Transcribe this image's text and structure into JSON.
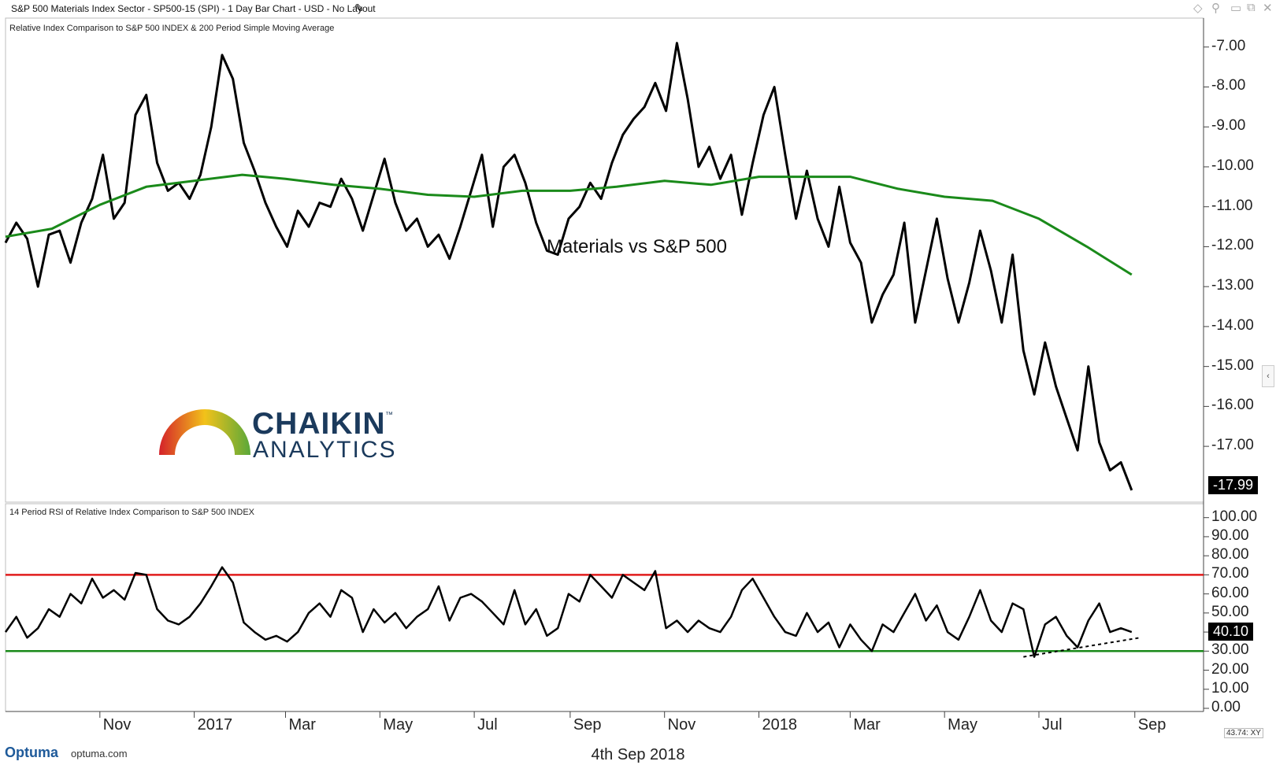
{
  "window": {
    "title": "S&P 500 Materials Index Sector - SP500-15 (SPI) - 1 Day Bar Chart - USD - No Layout",
    "icons": [
      "pencil-icon",
      "diamond-icon",
      "pin-icon",
      "minimize-icon",
      "restore-icon",
      "close-icon"
    ]
  },
  "colors": {
    "price": "#000000",
    "sma": "#1a8a1a",
    "overbought": "#e11b1b",
    "oversold": "#1a8a1a",
    "grid": "#c8c8c8"
  },
  "logo": {
    "line1": "CHAIKIN",
    "tm": "™",
    "line2": "ANALYTICS"
  },
  "footer": {
    "optuma_logo": "Optuma",
    "optuma_url": "optuma.com",
    "date": "4th Sep 2018",
    "coord_readout": "43.74: XY"
  },
  "chart_data": [
    {
      "type": "line",
      "title": "Relative Index Comparison to S&P 500 INDEX & 200 Period Simple Moving Average",
      "annotation": "Materials vs S&P 500",
      "ylim": [
        -18.2,
        -6.65
      ],
      "yticks": [
        "-7.00",
        "-8.00",
        "-9.00",
        "-10.00",
        "-11.00",
        "-12.00",
        "-13.00",
        "-14.00",
        "-15.00",
        "-16.00",
        "-17.00"
      ],
      "last_value_label": "-17.99",
      "series": [
        {
          "name": "",
          "style": "price",
          "x": [
            "2016-09-01",
            "2016-09-08",
            "2016-09-15",
            "2016-09-22",
            "2016-09-29",
            "2016-10-06",
            "2016-10-13",
            "2016-10-20",
            "2016-10-27",
            "2016-11-03",
            "2016-11-10",
            "2016-11-17",
            "2016-11-24",
            "2016-12-01",
            "2016-12-08",
            "2016-12-15",
            "2016-12-22",
            "2016-12-29",
            "2017-01-05",
            "2017-01-12",
            "2017-01-19",
            "2017-01-26",
            "2017-02-02",
            "2017-02-09",
            "2017-02-16",
            "2017-02-23",
            "2017-03-02",
            "2017-03-09",
            "2017-03-16",
            "2017-03-23",
            "2017-03-30",
            "2017-04-06",
            "2017-04-13",
            "2017-04-20",
            "2017-04-27",
            "2017-05-04",
            "2017-05-11",
            "2017-05-18",
            "2017-05-25",
            "2017-06-01",
            "2017-06-08",
            "2017-06-15",
            "2017-06-22",
            "2017-06-29",
            "2017-07-06",
            "2017-07-13",
            "2017-07-20",
            "2017-07-27",
            "2017-08-03",
            "2017-08-10",
            "2017-08-17",
            "2017-08-24",
            "2017-08-31",
            "2017-09-07",
            "2017-09-14",
            "2017-09-21",
            "2017-09-28",
            "2017-10-05",
            "2017-10-12",
            "2017-10-19",
            "2017-10-26",
            "2017-11-02",
            "2017-11-09",
            "2017-11-16",
            "2017-11-23",
            "2017-11-30",
            "2017-12-07",
            "2017-12-14",
            "2017-12-21",
            "2017-12-28",
            "2018-01-04",
            "2018-01-11",
            "2018-01-18",
            "2018-01-25",
            "2018-02-01",
            "2018-02-08",
            "2018-02-15",
            "2018-02-22",
            "2018-03-01",
            "2018-03-08",
            "2018-03-15",
            "2018-03-22",
            "2018-03-29",
            "2018-04-05",
            "2018-04-12",
            "2018-04-19",
            "2018-04-26",
            "2018-05-03",
            "2018-05-10",
            "2018-05-17",
            "2018-05-24",
            "2018-05-31",
            "2018-06-07",
            "2018-06-14",
            "2018-06-21",
            "2018-06-28",
            "2018-07-05",
            "2018-07-12",
            "2018-07-19",
            "2018-07-26",
            "2018-08-02",
            "2018-08-09",
            "2018-08-16",
            "2018-08-23",
            "2018-08-30"
          ],
          "values": [
            -11.9,
            -11.4,
            -11.8,
            -13.0,
            -11.7,
            -11.6,
            -12.4,
            -11.4,
            -10.8,
            -9.7,
            -11.3,
            -10.9,
            -8.7,
            -8.2,
            -9.9,
            -10.6,
            -10.4,
            -10.8,
            -10.2,
            -9.0,
            -7.2,
            -7.8,
            -9.4,
            -10.1,
            -10.9,
            -11.5,
            -12.0,
            -11.1,
            -11.5,
            -10.9,
            -11.0,
            -10.3,
            -10.8,
            -11.6,
            -10.7,
            -9.8,
            -10.9,
            -11.6,
            -11.3,
            -12.0,
            -11.7,
            -12.3,
            -11.5,
            -10.6,
            -9.7,
            -11.5,
            -10.0,
            -9.7,
            -10.4,
            -11.4,
            -12.1,
            -12.2,
            -11.3,
            -11.0,
            -10.4,
            -10.8,
            -9.9,
            -9.2,
            -8.8,
            -8.5,
            -7.9,
            -8.6,
            -6.9,
            -8.3,
            -10.0,
            -9.5,
            -10.3,
            -9.7,
            -11.2,
            -9.9,
            -8.7,
            -8.0,
            -9.7,
            -11.3,
            -10.1,
            -11.3,
            -12.0,
            -10.5,
            -11.9,
            -12.4,
            -13.9,
            -13.2,
            -12.7,
            -11.4,
            -13.9,
            -12.6,
            -11.3,
            -12.8,
            -13.9,
            -12.9,
            -11.6,
            -12.6,
            -13.9,
            -12.2,
            -14.6,
            -15.7,
            -14.4,
            -15.5,
            -16.3,
            -17.1,
            -15.0,
            -16.9,
            -17.6,
            -17.4,
            -18.1
          ]
        },
        {
          "name": "",
          "style": "sma",
          "x": [
            "2016-09-01",
            "2016-10-01",
            "2016-11-01",
            "2016-12-01",
            "2017-01-01",
            "2017-02-01",
            "2017-03-01",
            "2017-04-01",
            "2017-05-01",
            "2017-06-01",
            "2017-07-01",
            "2017-08-01",
            "2017-09-01",
            "2017-10-01",
            "2017-11-01",
            "2017-12-01",
            "2018-01-01",
            "2018-02-01",
            "2018-03-01",
            "2018-04-01",
            "2018-05-01",
            "2018-06-01",
            "2018-07-01",
            "2018-08-01",
            "2018-08-30"
          ],
          "values": [
            -11.75,
            -11.55,
            -10.95,
            -10.5,
            -10.35,
            -10.2,
            -10.3,
            -10.45,
            -10.55,
            -10.7,
            -10.75,
            -10.6,
            -10.6,
            -10.5,
            -10.35,
            -10.45,
            -10.25,
            -10.25,
            -10.25,
            -10.55,
            -10.75,
            -10.85,
            -11.3,
            -12.0,
            -12.7
          ]
        }
      ]
    },
    {
      "type": "line",
      "title": "14 Period RSI of Relative Index Comparison to S&P 500 INDEX",
      "ylim": [
        0,
        104
      ],
      "yticks": [
        "100.00",
        "90.00",
        "80.00",
        "70.00",
        "60.00",
        "50.00",
        "40.00",
        "30.00",
        "20.00",
        "10.00",
        "0.00"
      ],
      "last_value_label": "40.10",
      "overbought_level": 70,
      "oversold_level": 30,
      "series": [
        {
          "name": "",
          "style": "rsi",
          "x": [
            "2016-09-01",
            "2016-09-08",
            "2016-09-15",
            "2016-09-22",
            "2016-09-29",
            "2016-10-06",
            "2016-10-13",
            "2016-10-20",
            "2016-10-27",
            "2016-11-03",
            "2016-11-10",
            "2016-11-17",
            "2016-11-24",
            "2016-12-01",
            "2016-12-08",
            "2016-12-15",
            "2016-12-22",
            "2016-12-29",
            "2017-01-05",
            "2017-01-12",
            "2017-01-19",
            "2017-01-26",
            "2017-02-02",
            "2017-02-09",
            "2017-02-16",
            "2017-02-23",
            "2017-03-02",
            "2017-03-09",
            "2017-03-16",
            "2017-03-23",
            "2017-03-30",
            "2017-04-06",
            "2017-04-13",
            "2017-04-20",
            "2017-04-27",
            "2017-05-04",
            "2017-05-11",
            "2017-05-18",
            "2017-05-25",
            "2017-06-01",
            "2017-06-08",
            "2017-06-15",
            "2017-06-22",
            "2017-06-29",
            "2017-07-06",
            "2017-07-13",
            "2017-07-20",
            "2017-07-27",
            "2017-08-03",
            "2017-08-10",
            "2017-08-17",
            "2017-08-24",
            "2017-08-31",
            "2017-09-07",
            "2017-09-14",
            "2017-09-21",
            "2017-09-28",
            "2017-10-05",
            "2017-10-12",
            "2017-10-19",
            "2017-10-26",
            "2017-11-02",
            "2017-11-09",
            "2017-11-16",
            "2017-11-23",
            "2017-11-30",
            "2017-12-07",
            "2017-12-14",
            "2017-12-21",
            "2017-12-28",
            "2018-01-04",
            "2018-01-11",
            "2018-01-18",
            "2018-01-25",
            "2018-02-01",
            "2018-02-08",
            "2018-02-15",
            "2018-02-22",
            "2018-03-01",
            "2018-03-08",
            "2018-03-15",
            "2018-03-22",
            "2018-03-29",
            "2018-04-05",
            "2018-04-12",
            "2018-04-19",
            "2018-04-26",
            "2018-05-03",
            "2018-05-10",
            "2018-05-17",
            "2018-05-24",
            "2018-05-31",
            "2018-06-07",
            "2018-06-14",
            "2018-06-21",
            "2018-06-28",
            "2018-07-05",
            "2018-07-12",
            "2018-07-19",
            "2018-07-26",
            "2018-08-02",
            "2018-08-09",
            "2018-08-16",
            "2018-08-23",
            "2018-08-30"
          ],
          "values": [
            40,
            48,
            37,
            42,
            52,
            48,
            60,
            55,
            68,
            58,
            62,
            57,
            71,
            70,
            52,
            46,
            44,
            48,
            55,
            64,
            74,
            66,
            45,
            40,
            36,
            38,
            35,
            40,
            50,
            55,
            48,
            62,
            58,
            40,
            52,
            45,
            50,
            42,
            48,
            52,
            64,
            46,
            58,
            60,
            56,
            50,
            44,
            62,
            44,
            52,
            38,
            42,
            60,
            56,
            70,
            64,
            58,
            70,
            66,
            62,
            72,
            42,
            46,
            40,
            46,
            42,
            40,
            48,
            62,
            68,
            58,
            48,
            40,
            38,
            50,
            40,
            45,
            32,
            44,
            36,
            30,
            44,
            40,
            50,
            60,
            46,
            54,
            40,
            36,
            48,
            62,
            46,
            40,
            55,
            52,
            27,
            44,
            48,
            38,
            32,
            46,
            55,
            40,
            42,
            40
          ]
        }
      ],
      "trendline": {
        "x": [
          "2018-06-21",
          "2018-09-04"
        ],
        "y": [
          27,
          37
        ]
      }
    }
  ],
  "x_axis": {
    "ticks": [
      {
        "label": "Nov",
        "date": "2016-11-01"
      },
      {
        "label": "2017",
        "date": "2017-01-01"
      },
      {
        "label": "Mar",
        "date": "2017-03-01"
      },
      {
        "label": "May",
        "date": "2017-05-01"
      },
      {
        "label": "Jul",
        "date": "2017-07-01"
      },
      {
        "label": "Sep",
        "date": "2017-09-01"
      },
      {
        "label": "Nov",
        "date": "2017-11-01"
      },
      {
        "label": "2018",
        "date": "2018-01-01"
      },
      {
        "label": "Mar",
        "date": "2018-03-01"
      },
      {
        "label": "May",
        "date": "2018-05-01"
      },
      {
        "label": "Jul",
        "date": "2018-07-01"
      },
      {
        "label": "Sep",
        "date": "2018-09-01"
      }
    ]
  }
}
